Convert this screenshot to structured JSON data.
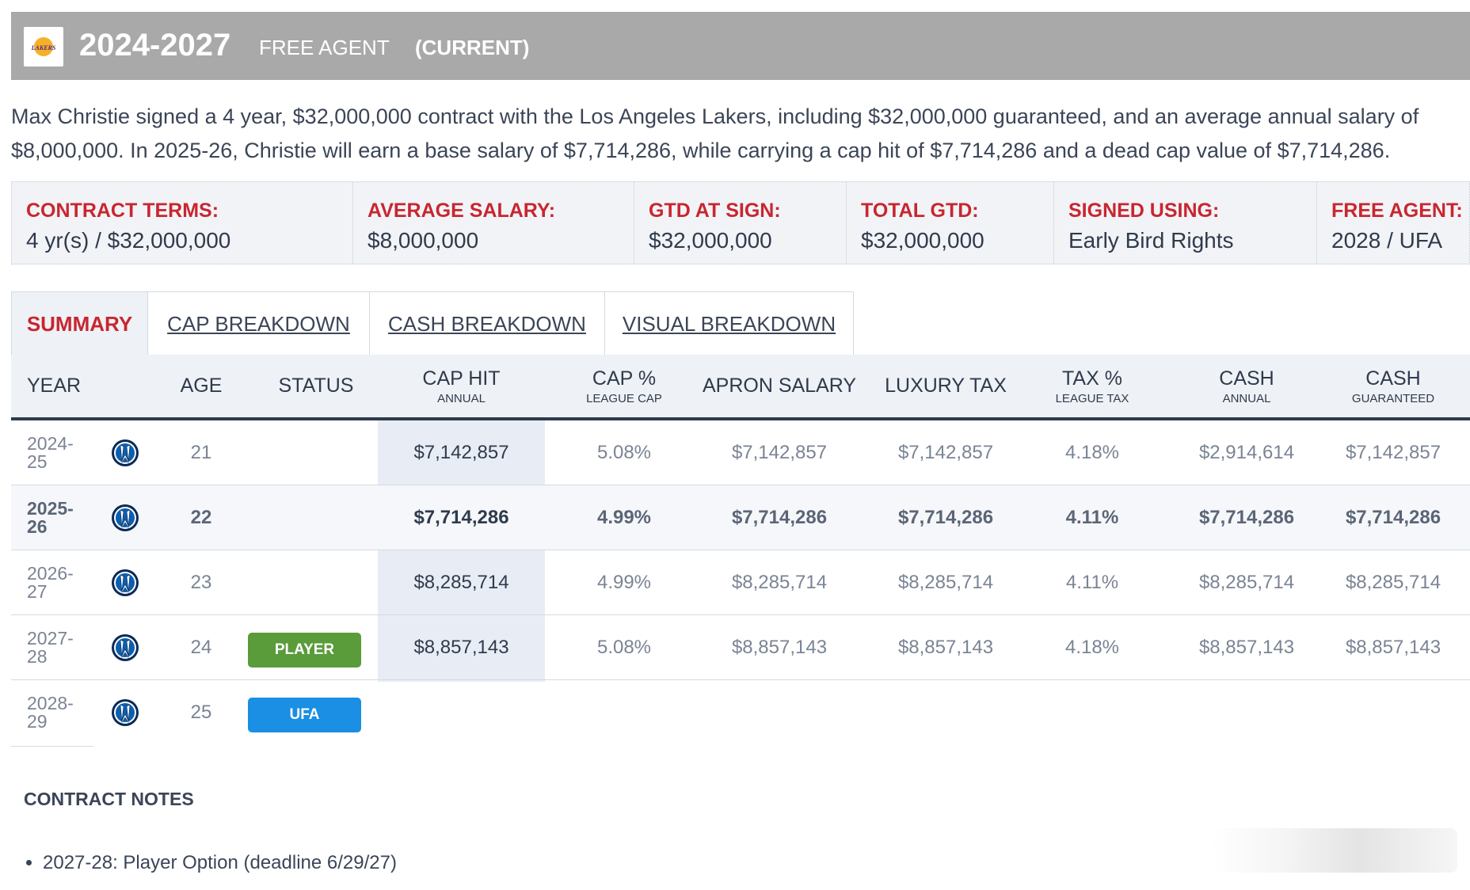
{
  "header": {
    "team_logo": "lakers-logo",
    "team_logo_text": "LAKERS",
    "years": "2024-2027",
    "fa_label": "FREE AGENT",
    "current_label": "(CURRENT)"
  },
  "description": "Max Christie signed a 4 year, $32,000,000 contract with the Los Angeles Lakers, including $32,000,000 guaranteed, and an average annual salary of $8,000,000. In 2025-26, Christie will earn a base salary of $7,714,286, while carrying a cap hit of $7,714,286 and a dead cap value of $7,714,286.",
  "terms": [
    {
      "label": "CONTRACT TERMS:",
      "value": "4 yr(s) / $32,000,000"
    },
    {
      "label": "AVERAGE SALARY:",
      "value": "$8,000,000"
    },
    {
      "label": "GTD AT SIGN:",
      "value": "$32,000,000"
    },
    {
      "label": "TOTAL GTD:",
      "value": "$32,000,000"
    },
    {
      "label": "SIGNED USING:",
      "value": "Early Bird Rights"
    },
    {
      "label": "FREE AGENT:",
      "value": "2028 / UFA"
    }
  ],
  "tabs": [
    "SUMMARY",
    "CAP BREAKDOWN",
    "CASH BREAKDOWN",
    "VISUAL BREAKDOWN"
  ],
  "table": {
    "headers": [
      {
        "main": "YEAR",
        "sub": ""
      },
      {
        "main": "AGE",
        "sub": ""
      },
      {
        "main": "STATUS",
        "sub": ""
      },
      {
        "main": "CAP HIT",
        "sub": "ANNUAL"
      },
      {
        "main": "CAP %",
        "sub": "LEAGUE CAP"
      },
      {
        "main": "APRON SALARY",
        "sub": ""
      },
      {
        "main": "LUXURY TAX",
        "sub": ""
      },
      {
        "main": "TAX %",
        "sub": "LEAGUE TAX"
      },
      {
        "main": "CASH",
        "sub": "ANNUAL"
      },
      {
        "main": "CASH",
        "sub": "GUARANTEED"
      }
    ],
    "rows": [
      {
        "year": "2024-25",
        "team_icon": "mavericks-logo",
        "age": "21",
        "status": "",
        "cap_hit": "$7,142,857",
        "cap_pct": "5.08%",
        "apron": "$7,142,857",
        "lux_tax": "$7,142,857",
        "tax_pct": "4.18%",
        "cash_annual": "$2,914,614",
        "cash_gtd": "$7,142,857"
      },
      {
        "year": "2025-26",
        "team_icon": "mavericks-logo",
        "age": "22",
        "status": "",
        "cap_hit": "$7,714,286",
        "cap_pct": "4.99%",
        "apron": "$7,714,286",
        "lux_tax": "$7,714,286",
        "tax_pct": "4.11%",
        "cash_annual": "$7,714,286",
        "cash_gtd": "$7,714,286"
      },
      {
        "year": "2026-27",
        "team_icon": "mavericks-logo",
        "age": "23",
        "status": "",
        "cap_hit": "$8,285,714",
        "cap_pct": "4.99%",
        "apron": "$8,285,714",
        "lux_tax": "$8,285,714",
        "tax_pct": "4.11%",
        "cash_annual": "$8,285,714",
        "cash_gtd": "$8,285,714"
      },
      {
        "year": "2027-28",
        "team_icon": "mavericks-logo",
        "age": "24",
        "status": "PLAYER",
        "cap_hit": "$8,857,143",
        "cap_pct": "5.08%",
        "apron": "$8,857,143",
        "lux_tax": "$8,857,143",
        "tax_pct": "4.18%",
        "cash_annual": "$8,857,143",
        "cash_gtd": "$8,857,143"
      },
      {
        "year": "2028-29",
        "team_icon": "mavericks-logo",
        "age": "25",
        "status": "UFA"
      }
    ]
  },
  "notes": {
    "title": "CONTRACT NOTES",
    "items": [
      "2027-28: Player Option (deadline 6/29/27)"
    ]
  },
  "colors": {
    "header_bg": "#a9a9a9",
    "accent_red": "#c8262f",
    "player_badge": "#5a9b3a",
    "ufa_badge": "#1a8fe3",
    "text_dark": "#2f3b4c"
  }
}
